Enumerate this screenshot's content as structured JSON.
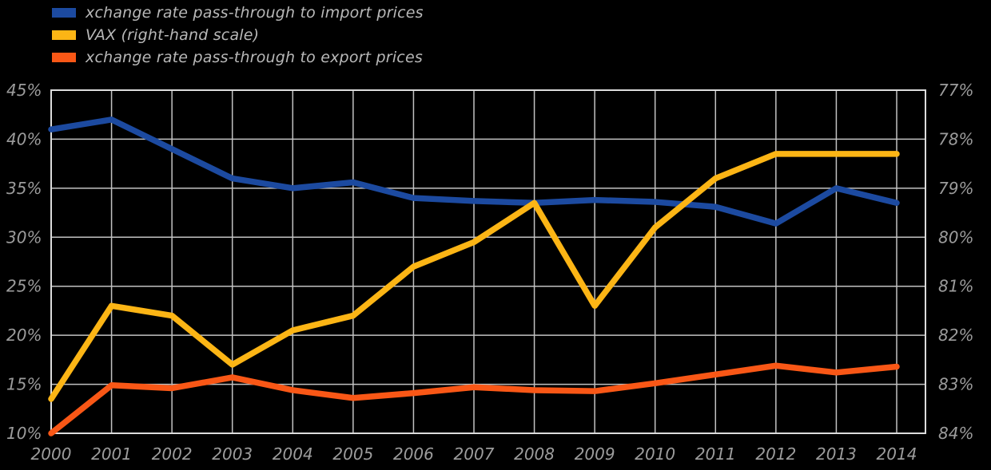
{
  "page": {
    "background": "#000000"
  },
  "legend": {
    "position": "top-left",
    "items": [
      {
        "label": "xchange rate pass-through to import prices",
        "color": "#1c4aa0",
        "series": "import-erpt"
      },
      {
        "label": "VAX (right-hand scale)",
        "color": "#fcb515",
        "series": "vax"
      },
      {
        "label": "xchange rate pass-through to export prices",
        "color": "#f95716",
        "series": "export-erpt"
      }
    ]
  },
  "chart_data": {
    "type": "line",
    "title": "",
    "xlabel": "",
    "ylabel": "",
    "grid": true,
    "background_color": "#000000",
    "grid_color": "#c2c2c2",
    "border_color": "#dcdcdc",
    "tick_text_color": "#9c9c9c",
    "legend_position": "top-left",
    "x_tick_labels": [
      "2000",
      "2001",
      "2002",
      "2003",
      "2004",
      "2005",
      "2006",
      "2007",
      "2008",
      "2009",
      "2010",
      "2011",
      "2012",
      "2013",
      "2014"
    ],
    "x": [
      2000,
      2001,
      2002,
      2003,
      2004,
      2005,
      2006,
      2007,
      2008,
      2009,
      2010,
      2011,
      2012,
      2013,
      2014
    ],
    "left_axis": {
      "min": 10,
      "max": 45,
      "step": 5,
      "tick_labels": [
        "45%",
        "40%",
        "35%",
        "30%",
        "25%",
        "20%",
        "15%",
        "10%"
      ]
    },
    "right_axis": {
      "min": 77,
      "max": 84,
      "step": 1,
      "inverted": true,
      "tick_labels": [
        "77%",
        "78%",
        "79%",
        "80%",
        "81%",
        "82%",
        "83%",
        "84%"
      ]
    },
    "series": [
      {
        "name": "xchange rate pass-through to import prices",
        "axis": "left",
        "color": "#1c4aa0",
        "values": [
          41.0,
          42.0,
          39.0,
          36.0,
          35.0,
          35.6,
          34.0,
          33.7,
          33.5,
          33.8,
          33.6,
          33.1,
          31.4,
          35.0,
          33.5
        ]
      },
      {
        "name": "VAX (right-hand scale)",
        "axis": "right",
        "color": "#fcb515",
        "values": [
          83.3,
          81.4,
          81.6,
          82.6,
          81.9,
          81.6,
          80.6,
          80.1,
          79.3,
          81.4,
          79.8,
          78.8,
          78.3,
          78.3,
          78.3
        ]
      },
      {
        "name": "xchange rate pass-through to export prices",
        "axis": "left",
        "color": "#f95716",
        "values": [
          10.0,
          14.9,
          14.6,
          15.7,
          14.4,
          13.6,
          14.1,
          14.7,
          14.4,
          14.3,
          15.1,
          16.0,
          16.9,
          16.2,
          16.8
        ]
      }
    ]
  }
}
